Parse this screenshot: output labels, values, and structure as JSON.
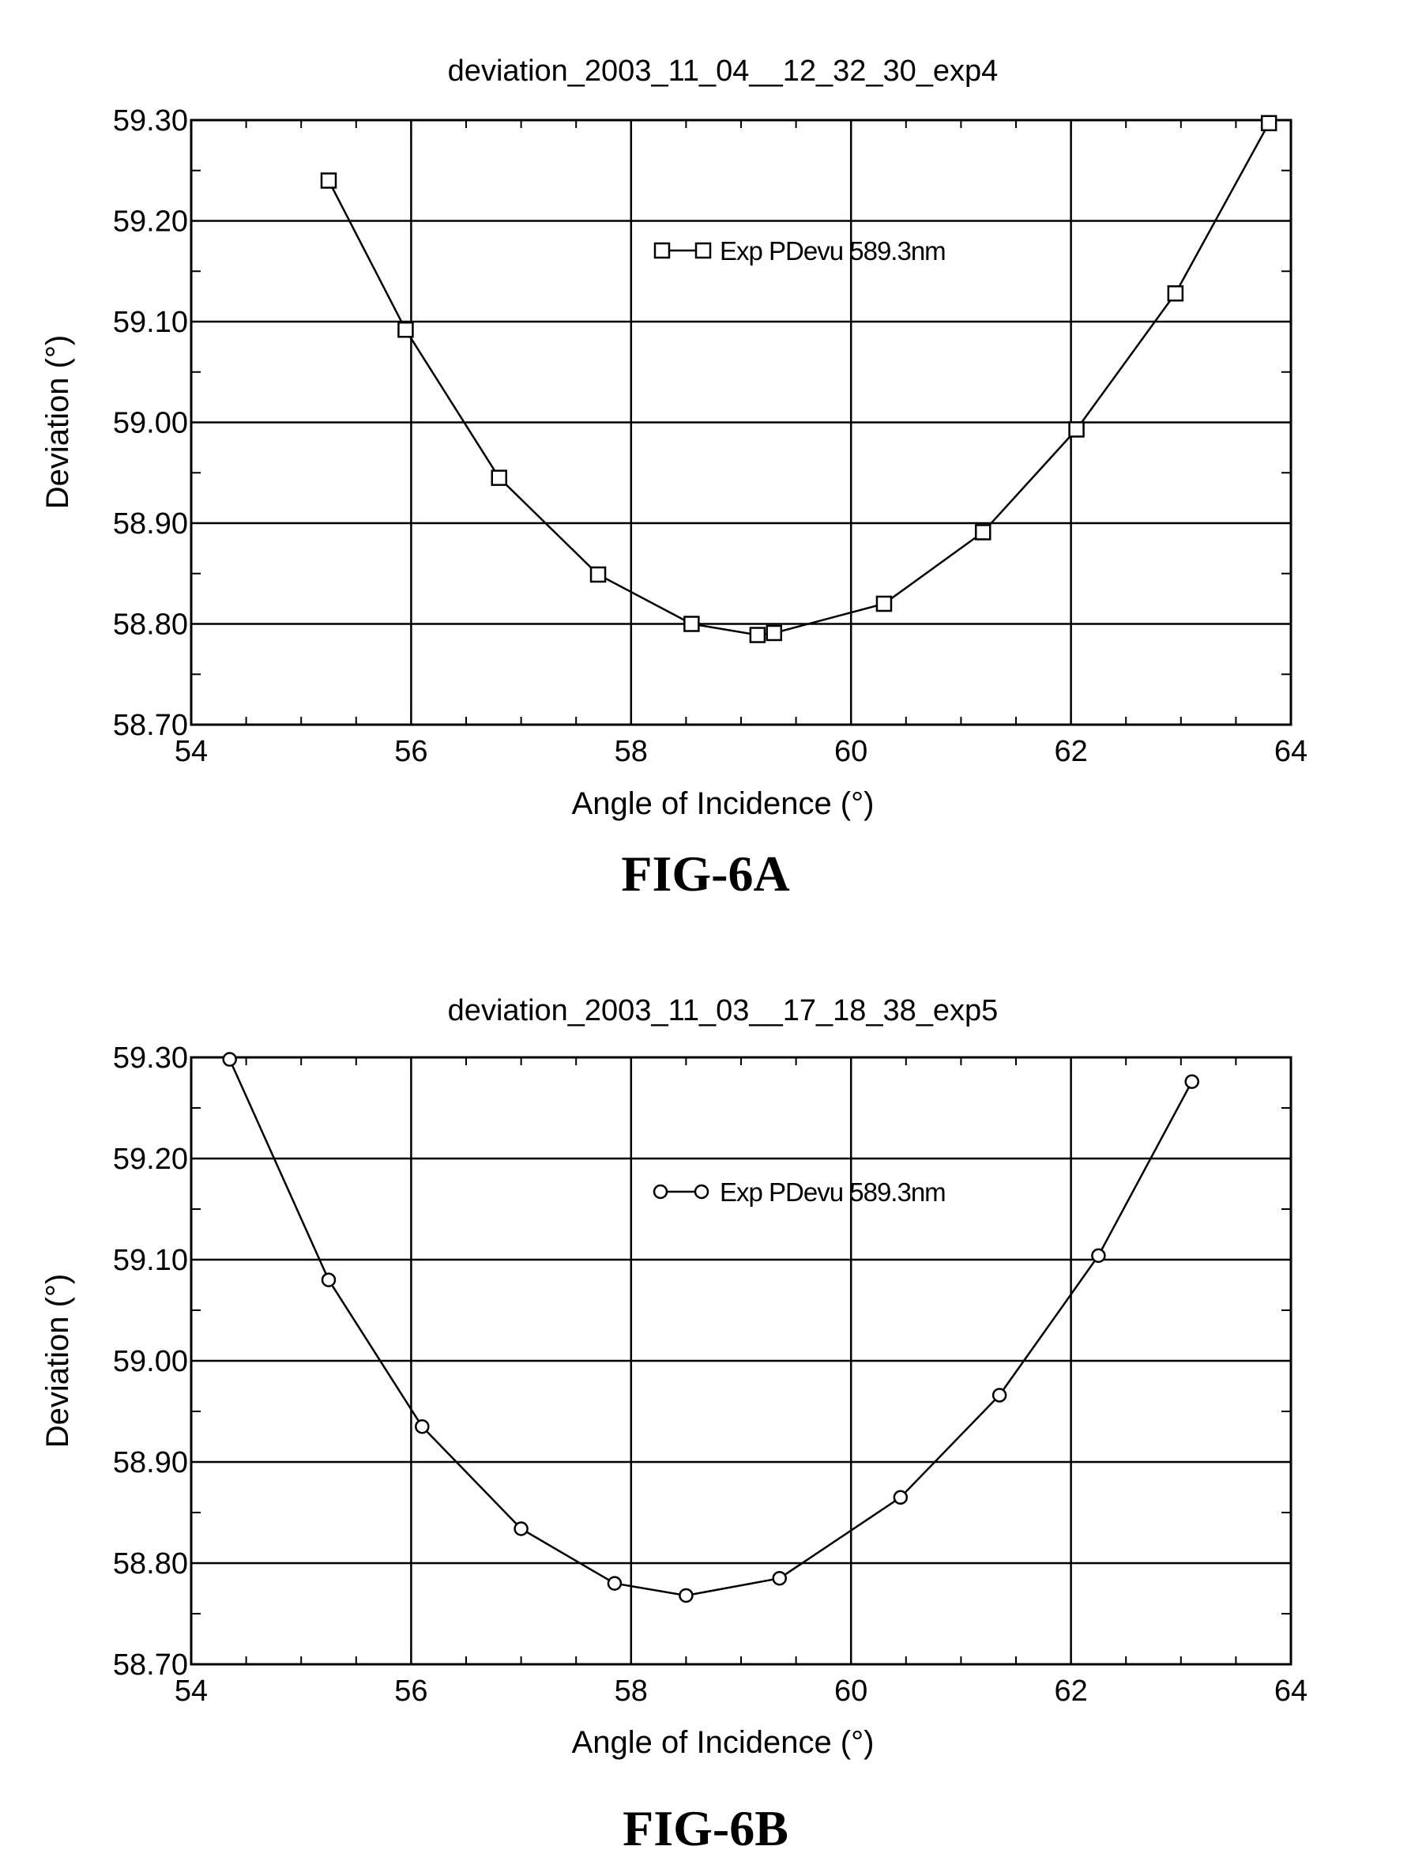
{
  "chart_data": [
    {
      "type": "line",
      "title": "deviation_2003_11_04__12_32_30_exp4",
      "xlabel": "Angle of Incidence (°)",
      "ylabel": "Deviation (°)",
      "xlim": [
        54,
        64
      ],
      "ylim": [
        58.7,
        59.3
      ],
      "x_ticks": [
        "54",
        "56",
        "58",
        "60",
        "62",
        "64"
      ],
      "y_ticks": [
        "58.70",
        "58.80",
        "58.90",
        "59.00",
        "59.10",
        "59.20",
        "59.30"
      ],
      "grid": true,
      "legend_position": "top-center",
      "caption": "FIG-6A",
      "marker": "square",
      "series": [
        {
          "name": "Exp PDevu 589.3nm",
          "x": [
            55.25,
            55.95,
            56.8,
            57.7,
            58.55,
            59.15,
            59.3,
            60.3,
            61.2,
            62.05,
            62.95,
            63.8
          ],
          "y": [
            59.24,
            59.092,
            58.945,
            58.849,
            58.8,
            58.789,
            58.791,
            58.82,
            58.891,
            58.993,
            59.128,
            59.297
          ]
        }
      ]
    },
    {
      "type": "line",
      "title": "deviation_2003_11_03__17_18_38_exp5",
      "xlabel": "Angle of Incidence (°)",
      "ylabel": "Deviation (°)",
      "xlim": [
        54,
        64
      ],
      "ylim": [
        58.7,
        59.3
      ],
      "x_ticks": [
        "54",
        "56",
        "58",
        "60",
        "62",
        "64"
      ],
      "y_ticks": [
        "58.70",
        "58.80",
        "58.90",
        "59.00",
        "59.10",
        "59.20",
        "59.30"
      ],
      "grid": true,
      "legend_position": "top-center",
      "caption": "FIG-6B",
      "marker": "circle",
      "series": [
        {
          "name": "Exp PDevu 589.3nm",
          "x": [
            54.35,
            55.25,
            56.1,
            57.0,
            57.85,
            58.5,
            59.35,
            60.45,
            61.35,
            62.25,
            63.1
          ],
          "y": [
            59.298,
            59.08,
            58.935,
            58.834,
            58.78,
            58.768,
            58.785,
            58.865,
            58.966,
            59.104,
            59.276
          ]
        }
      ]
    }
  ]
}
